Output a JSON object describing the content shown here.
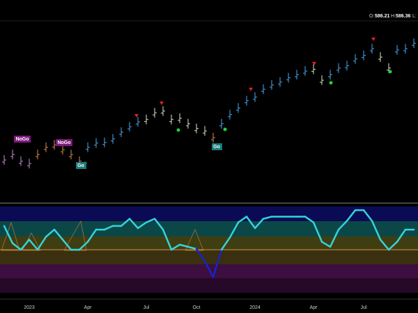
{
  "header": [
    "O:",
    "586.21",
    "H:",
    "586.36",
    "L:"
  ],
  "annotations": [
    "NoGo",
    "NoGo",
    "Go",
    "Go"
  ],
  "chart_data": [
    {
      "type": "ohlc",
      "values": [
        393,
        402,
        391,
        387,
        402,
        414,
        418,
        410,
        402,
        391,
        414,
        421,
        422,
        428,
        439,
        448,
        456,
        460,
        471,
        474,
        460,
        462,
        453,
        445,
        441,
        430,
        453,
        468,
        479,
        491,
        497,
        510,
        517,
        522,
        529,
        534,
        540,
        543,
        525,
        534,
        545,
        549,
        560,
        566,
        577,
        563,
        545,
        575,
        577,
        586
      ],
      "colors": [
        "#c98ad6",
        "#c98ad6",
        "#c98ad6",
        "#c98ad6",
        "#e0894a",
        "#e0894a",
        "#e0894a",
        "#e0894a",
        "#e0894a",
        "#e0894a",
        "#4aa8f0",
        "#4aa8f0",
        "#4aa8f0",
        "#4aa8f0",
        "#4aa8f0",
        "#4aa8f0",
        "#4aa8f0",
        "#d6e8c8",
        "#d6e8c8",
        "#d6e8c8",
        "#d6e8c8",
        "#d6e8c8",
        "#d6e8c8",
        "#d6e8c8",
        "#d6e8c8",
        "#e0894a",
        "#4aa8f0",
        "#4aa8f0",
        "#4aa8f0",
        "#4aa8f0",
        "#4aa8f0",
        "#4aa8f0",
        "#4aa8f0",
        "#4aa8f0",
        "#4aa8f0",
        "#4aa8f0",
        "#4aa8f0",
        "#d6e8c8",
        "#d6e8c8",
        "#4aa8f0",
        "#4aa8f0",
        "#4aa8f0",
        "#4aa8f0",
        "#4aa8f0",
        "#4aa8f0",
        "#d6e8c8",
        "#d6e8c8",
        "#4aa8f0",
        "#4aa8f0",
        "#4aa8f0"
      ],
      "ylim": [
        370,
        600
      ]
    },
    {
      "type": "line",
      "categories": [
        null,
        null,
        null,
        "2023",
        null,
        null,
        null,
        null,
        null,
        null,
        "Apr",
        null,
        null,
        null,
        null,
        null,
        null,
        "Jul",
        null,
        null,
        null,
        null,
        null,
        "Oct",
        null,
        null,
        null,
        null,
        null,
        null,
        "2024",
        null,
        null,
        null,
        null,
        null,
        null,
        "Apr",
        null,
        null,
        null,
        null,
        null,
        "Jul",
        null,
        null,
        null,
        null,
        null,
        null
      ],
      "values": [
        3.3,
        0.9,
        0,
        1.4,
        0,
        1.8,
        2.8,
        1.4,
        0,
        0,
        1.1,
        2.8,
        2.8,
        3.3,
        3.3,
        4.3,
        3.0,
        3.8,
        4.3,
        2.8,
        0,
        0.7,
        0.4,
        0.1,
        -1.6,
        -3.8,
        0,
        1.7,
        3.8,
        4.6,
        3.0,
        4.3,
        4.6,
        4.6,
        4.6,
        4.6,
        4.6,
        3.8,
        1.1,
        0.4,
        2.8,
        4.0,
        5.5,
        5.5,
        4.0,
        1.4,
        0,
        1.1,
        2.8,
        2.8
      ],
      "color": "#35d3dc",
      "negative_color": "#1a22c8",
      "ylim": [
        -6,
        6
      ]
    }
  ]
}
